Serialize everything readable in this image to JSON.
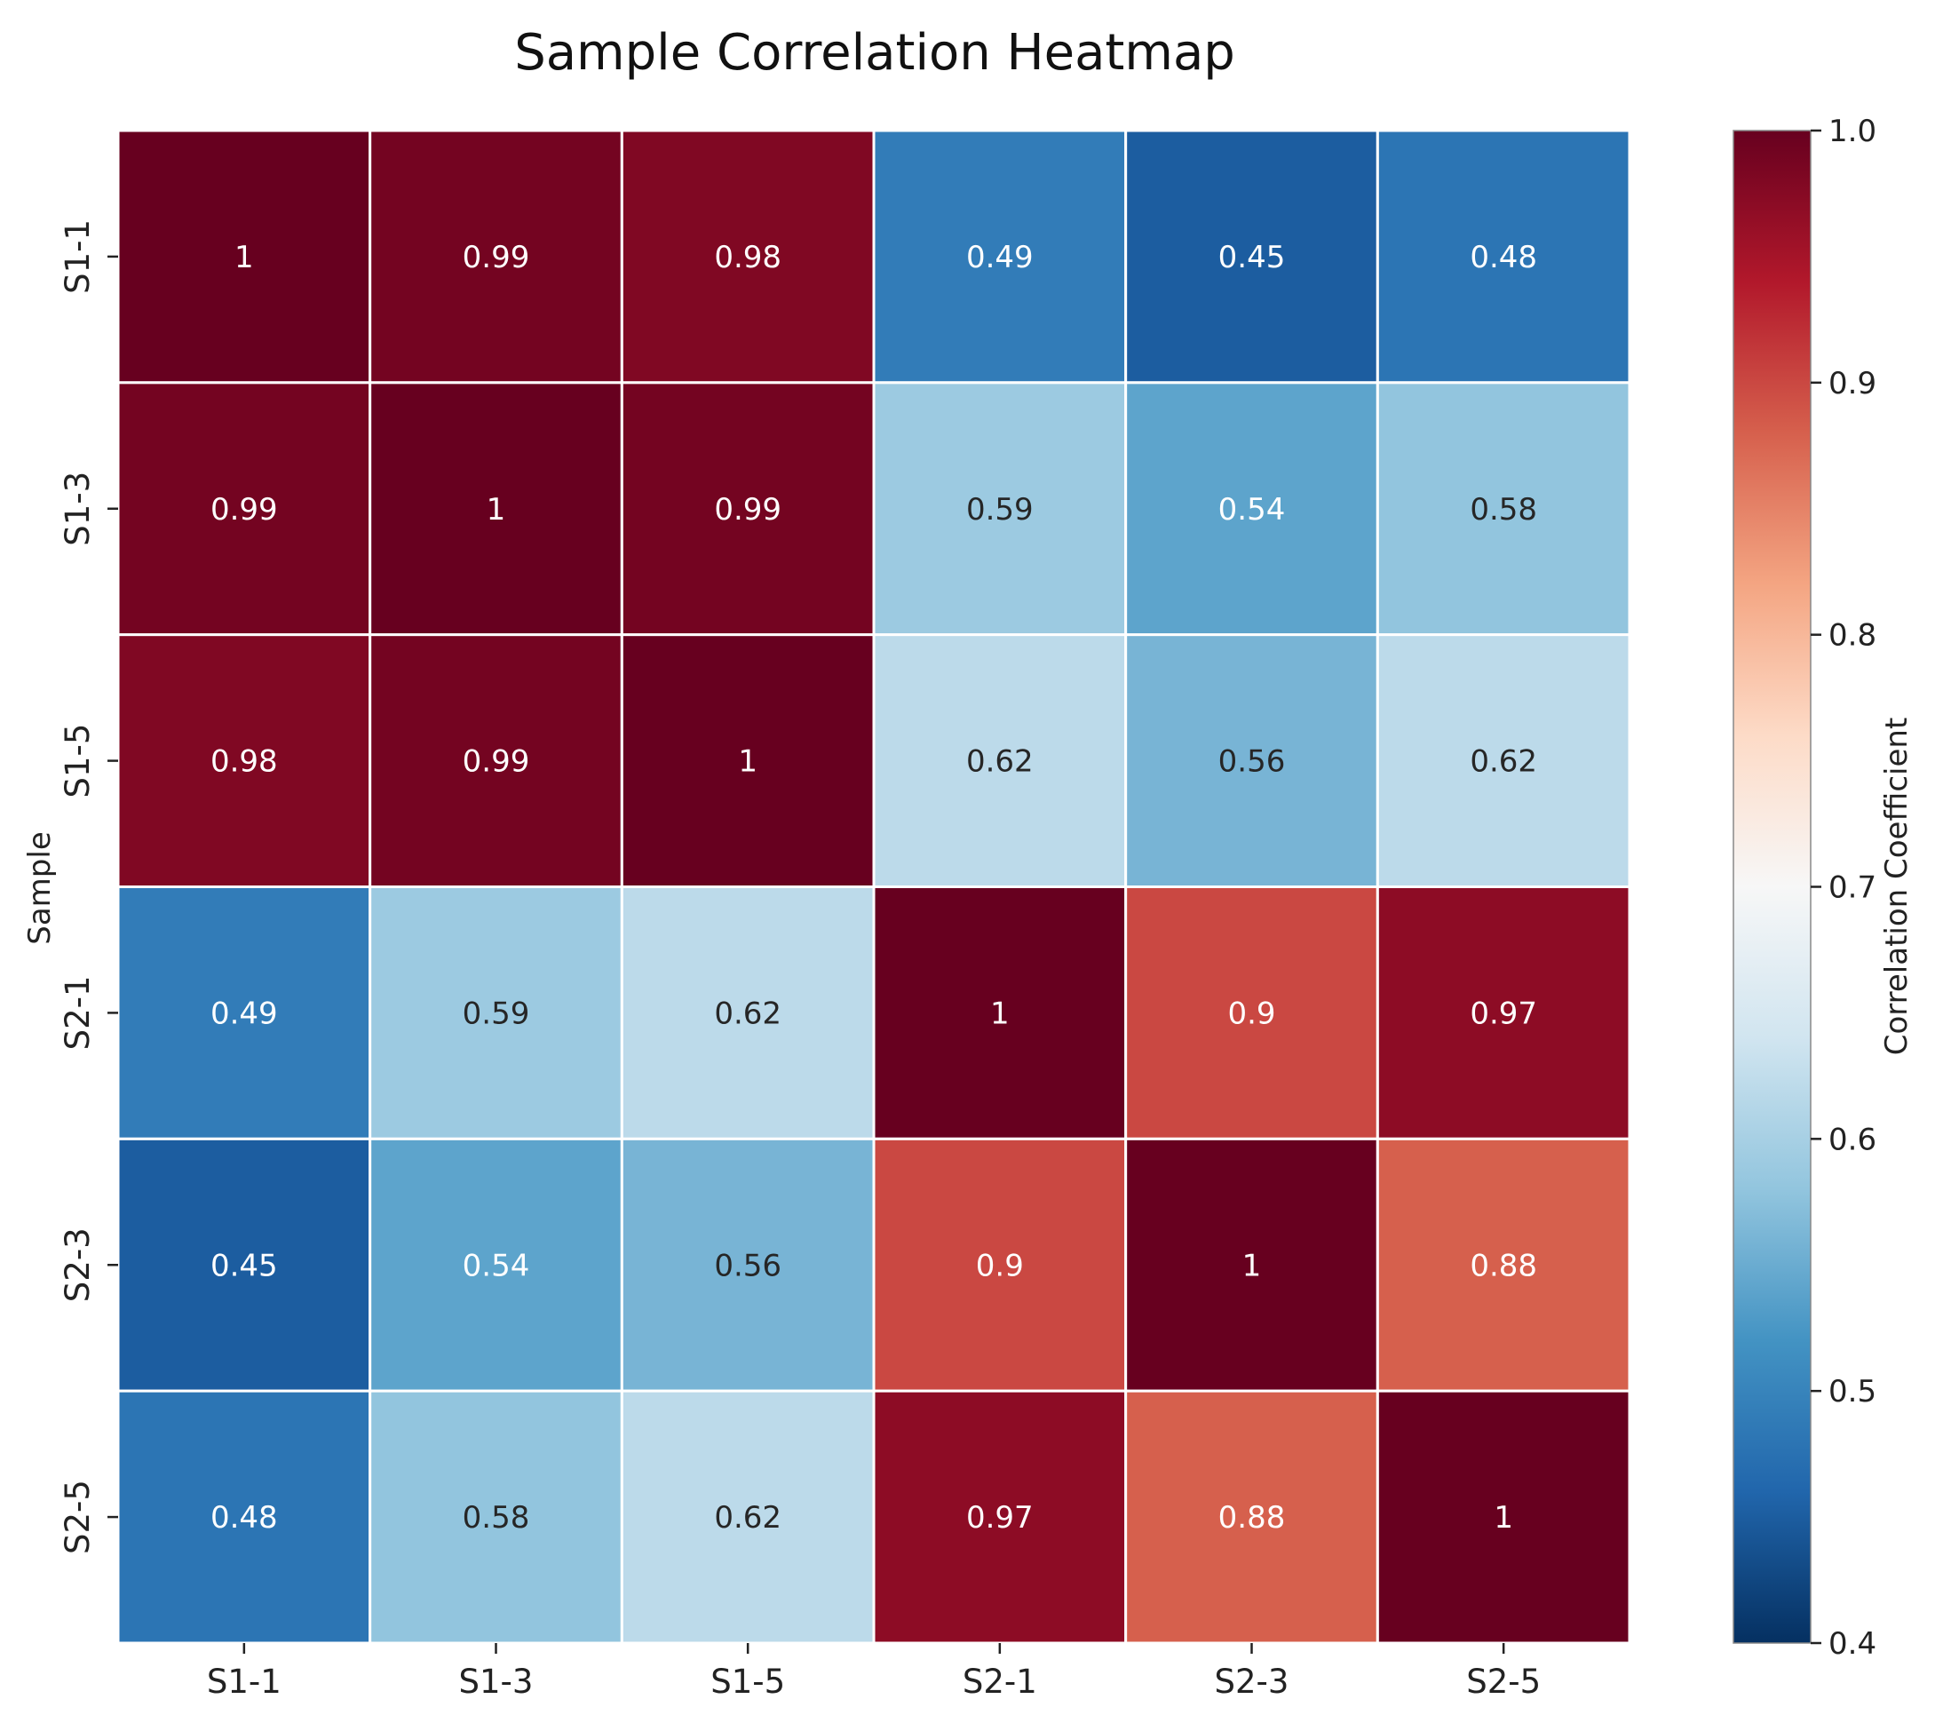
{
  "chart_data": {
    "type": "heatmap",
    "title": "Sample Correlation Heatmap",
    "xlabel": "",
    "ylabel": "Sample",
    "x_categories": [
      "S1-1",
      "S1-3",
      "S1-5",
      "S2-1",
      "S2-3",
      "S2-5"
    ],
    "y_categories": [
      "S1-1",
      "S1-3",
      "S1-5",
      "S2-1",
      "S2-3",
      "S2-5"
    ],
    "values": [
      [
        1.0,
        0.99,
        0.98,
        0.49,
        0.45,
        0.48
      ],
      [
        0.99,
        1.0,
        0.99,
        0.59,
        0.54,
        0.58
      ],
      [
        0.98,
        0.99,
        1.0,
        0.62,
        0.56,
        0.62
      ],
      [
        0.49,
        0.59,
        0.62,
        1.0,
        0.9,
        0.97
      ],
      [
        0.45,
        0.54,
        0.56,
        0.9,
        1.0,
        0.88
      ],
      [
        0.48,
        0.58,
        0.62,
        0.97,
        0.88,
        1.0
      ]
    ],
    "annotations": [
      [
        "1",
        "0.99",
        "0.98",
        "0.49",
        "0.45",
        "0.48"
      ],
      [
        "0.99",
        "1",
        "0.99",
        "0.59",
        "0.54",
        "0.58"
      ],
      [
        "0.98",
        "0.99",
        "1",
        "0.62",
        "0.56",
        "0.62"
      ],
      [
        "0.49",
        "0.59",
        "0.62",
        "1",
        "0.9",
        "0.97"
      ],
      [
        "0.45",
        "0.54",
        "0.56",
        "0.9",
        "1",
        "0.88"
      ],
      [
        "0.48",
        "0.58",
        "0.62",
        "0.97",
        "0.88",
        "1"
      ]
    ],
    "colormap": "RdBu_r",
    "vmin": 0.4,
    "vmax": 1.0,
    "colorbar": {
      "label": "Correlation Coefficient",
      "ticks": [
        0.4,
        0.5,
        0.6,
        0.7,
        0.8,
        0.9,
        1.0
      ],
      "tick_labels": [
        "0.4",
        "0.5",
        "0.6",
        "0.7",
        "0.8",
        "0.9",
        "1.0"
      ],
      "placement": "right"
    },
    "colormap_stops": [
      "#053061",
      "#2166ac",
      "#4393c3",
      "#92c5de",
      "#d1e5f0",
      "#f7f7f7",
      "#fddbc7",
      "#f4a582",
      "#d6604d",
      "#b2182b",
      "#67001f"
    ],
    "cell_border_color": "#ffffff"
  }
}
